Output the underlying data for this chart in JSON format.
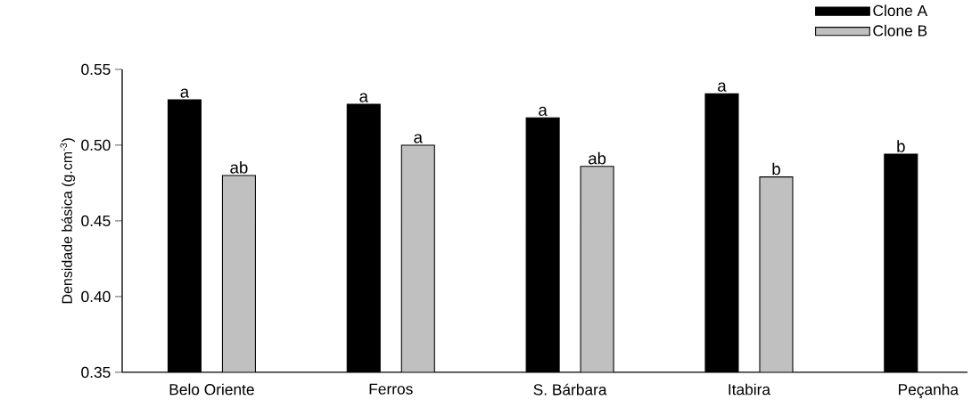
{
  "chart_data": {
    "type": "bar",
    "ylabel": "Densidade básica (g.cm$^{-3}$)",
    "categories": [
      "Belo Oriente",
      "Ferros",
      "S. Bárbara",
      "Itabira",
      "Peçanha"
    ],
    "series": [
      {
        "name": "Clone A",
        "color": "#000000",
        "values": [
          0.53,
          0.527,
          0.518,
          0.534,
          0.494
        ],
        "value_labels": [
          "a",
          "a",
          "a",
          "a",
          "b"
        ]
      },
      {
        "name": "Clone B",
        "color": "#c0c0c0",
        "values": [
          0.48,
          0.5,
          0.486,
          0.479,
          null
        ],
        "value_labels": [
          "ab",
          "a",
          "ab",
          "b",
          null
        ]
      }
    ],
    "ylim": [
      0.35,
      0.55
    ],
    "yticks": [
      0.35,
      {
        "value": 0.4,
        "label": "0.40"
      },
      0.45,
      {
        "value": 0.5,
        "label": "0.50"
      },
      0.55
    ],
    "legend": "top right"
  }
}
